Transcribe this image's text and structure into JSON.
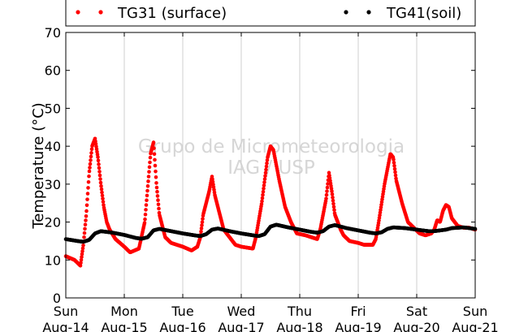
{
  "chart_data": {
    "type": "scatter",
    "ylabel": "Temperature (°C)",
    "ylim": [
      0,
      70
    ],
    "yticks": [
      0,
      10,
      20,
      30,
      40,
      50,
      60,
      70
    ],
    "xlim": [
      "2016-08-14",
      "2016-08-21"
    ],
    "xticks": [
      {
        "day": "Sun",
        "date": "Aug-14"
      },
      {
        "day": "Mon",
        "date": "Aug-15"
      },
      {
        "day": "Tue",
        "date": "Aug-16"
      },
      {
        "day": "Wed",
        "date": "Aug-17"
      },
      {
        "day": "Thu",
        "date": "Aug-18"
      },
      {
        "day": "Fri",
        "date": "Aug-19"
      },
      {
        "day": "Sat",
        "date": "Aug-20"
      },
      {
        "day": "Sun",
        "date": "Aug-21"
      }
    ],
    "grid": "vertical",
    "legend_position": "top",
    "watermark": [
      "Grupo de Micrometeorologia",
      "IAG / USP"
    ],
    "series": [
      {
        "name": "TG31 (surface)",
        "color": "#ff0000",
        "x_days": [
          0.0,
          0.15,
          0.25,
          0.3,
          0.35,
          0.4,
          0.45,
          0.5,
          0.55,
          0.6,
          0.65,
          0.7,
          0.75,
          0.85,
          1.0,
          1.1,
          1.25,
          1.35,
          1.4,
          1.45,
          1.5,
          1.55,
          1.6,
          1.7,
          1.8,
          1.9,
          2.0,
          2.15,
          2.25,
          2.3,
          2.35,
          2.45,
          2.5,
          2.55,
          2.6,
          2.65,
          2.7,
          2.8,
          2.9,
          3.0,
          3.2,
          3.25,
          3.35,
          3.45,
          3.5,
          3.55,
          3.65,
          3.75,
          3.85,
          3.95,
          4.1,
          4.3,
          4.35,
          4.45,
          4.5,
          4.55,
          4.6,
          4.7,
          4.75,
          4.85,
          5.0,
          5.1,
          5.25,
          5.3,
          5.35,
          5.45,
          5.55,
          5.6,
          5.65,
          5.75,
          5.85,
          5.95,
          6.05,
          6.15,
          6.25,
          6.3,
          6.35,
          6.4,
          6.45,
          6.5,
          6.55,
          6.6,
          6.7,
          6.8,
          6.9,
          7.0
        ],
        "values": [
          11.0,
          10.0,
          8.5,
          14.0,
          22.0,
          33.0,
          40.0,
          42.0,
          37.0,
          30.0,
          24.0,
          20.0,
          18.0,
          15.5,
          13.5,
          12.0,
          13.0,
          20.0,
          29.0,
          38.0,
          41.0,
          30.0,
          22.0,
          16.0,
          14.5,
          14.0,
          13.5,
          12.5,
          13.5,
          16.0,
          22.0,
          28.0,
          32.0,
          27.0,
          24.0,
          21.0,
          18.0,
          16.0,
          14.0,
          13.5,
          13.0,
          16.0,
          25.0,
          37.0,
          40.0,
          39.0,
          31.0,
          24.0,
          20.0,
          17.0,
          16.5,
          15.5,
          18.0,
          26.0,
          33.0,
          28.0,
          22.0,
          18.0,
          16.5,
          15.0,
          14.5,
          14.0,
          14.0,
          15.5,
          20.0,
          30.0,
          38.0,
          37.0,
          31.0,
          25.0,
          20.0,
          18.5,
          17.0,
          16.5,
          17.0,
          18.0,
          20.5,
          20.0,
          23.0,
          24.5,
          24.0,
          21.0,
          19.0,
          18.5,
          18.5,
          18.0
        ]
      },
      {
        "name": "TG41(soil)",
        "color": "#000000",
        "x_days": [
          0.0,
          0.2,
          0.3,
          0.4,
          0.5,
          0.6,
          0.8,
          1.0,
          1.2,
          1.3,
          1.4,
          1.5,
          1.6,
          1.8,
          2.0,
          2.2,
          2.3,
          2.4,
          2.5,
          2.6,
          2.8,
          3.0,
          3.2,
          3.3,
          3.4,
          3.5,
          3.6,
          3.8,
          4.0,
          4.2,
          4.3,
          4.4,
          4.5,
          4.6,
          4.8,
          5.0,
          5.2,
          5.3,
          5.4,
          5.5,
          5.6,
          5.8,
          6.0,
          6.2,
          6.3,
          6.4,
          6.5,
          6.6,
          6.8,
          7.0
        ],
        "values": [
          15.5,
          15.0,
          14.8,
          15.3,
          17.0,
          17.6,
          17.2,
          16.6,
          15.8,
          15.6,
          16.0,
          17.8,
          18.2,
          17.6,
          17.0,
          16.5,
          16.3,
          16.8,
          18.0,
          18.3,
          17.6,
          17.0,
          16.5,
          16.3,
          16.8,
          18.8,
          19.3,
          18.6,
          18.0,
          17.4,
          17.2,
          17.6,
          18.8,
          19.2,
          18.4,
          17.8,
          17.2,
          17.0,
          17.3,
          18.2,
          18.6,
          18.4,
          18.0,
          17.6,
          17.6,
          17.8,
          18.0,
          18.4,
          18.6,
          18.2
        ]
      }
    ]
  }
}
